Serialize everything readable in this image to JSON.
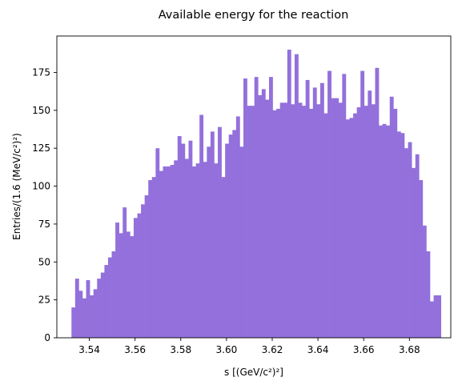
{
  "chart_data": {
    "type": "bar",
    "title": "Available energy for the reaction",
    "xlabel": "s [(GeV/c²)²]",
    "ylabel": "Entries/(1.6 (MeV/c²)²)",
    "xlim": [
      3.5258,
      3.6981
    ],
    "ylim": [
      0,
      199
    ],
    "x_ticks": [
      "3.54",
      "3.56",
      "3.58",
      "3.60",
      "3.62",
      "3.64",
      "3.66",
      "3.68"
    ],
    "x_tick_values": [
      3.54,
      3.56,
      3.58,
      3.6,
      3.62,
      3.64,
      3.66,
      3.68
    ],
    "y_ticks": [
      "0",
      "25",
      "50",
      "75",
      "100",
      "125",
      "150",
      "175"
    ],
    "y_tick_values": [
      0,
      25,
      50,
      75,
      100,
      125,
      150,
      175
    ],
    "bin_start": 3.5322,
    "bin_width": 0.0016,
    "values": [
      20,
      39,
      31,
      26,
      38,
      28,
      32,
      39,
      43,
      48,
      53,
      57,
      76,
      69,
      86,
      70,
      67,
      79,
      82,
      88,
      94,
      104,
      106,
      125,
      110,
      113,
      113,
      114,
      117,
      133,
      128,
      118,
      130,
      113,
      115,
      147,
      116,
      126,
      136,
      115,
      139,
      106,
      128,
      134,
      137,
      146,
      126,
      171,
      153,
      153,
      172,
      160,
      164,
      157,
      172,
      150,
      151,
      155,
      155,
      190,
      154,
      187,
      155,
      153,
      170,
      151,
      165,
      154,
      168,
      148,
      176,
      158,
      158,
      155,
      174,
      144,
      145,
      148,
      152,
      176,
      153,
      163,
      154,
      178,
      140,
      141,
      140,
      159,
      151,
      136,
      135,
      125,
      129,
      112,
      121,
      104,
      74,
      57,
      24,
      28,
      28
    ],
    "bar_color": "#9370DB",
    "grid": false,
    "legend": "none"
  }
}
